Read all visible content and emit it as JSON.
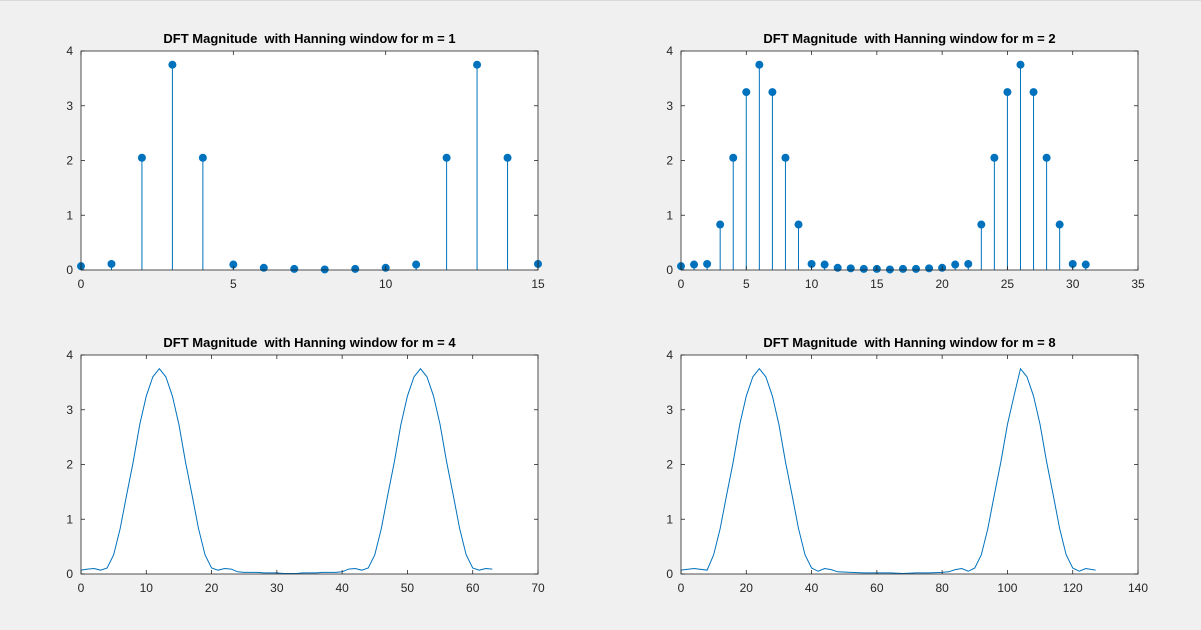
{
  "figure": {
    "background": "#f0f0f0",
    "axes_background": "#ffffff",
    "series_color": "#0072bd",
    "axis_color": "#262626"
  },
  "chart_data": [
    {
      "type": "stem",
      "title": "DFT Magnitude  with Hanning window for m = 1",
      "xlim": [
        0,
        15
      ],
      "ylim": [
        0,
        4
      ],
      "xticks": [
        0,
        5,
        10,
        15
      ],
      "yticks": [
        0,
        1,
        2,
        3,
        4
      ],
      "grid": false,
      "marker": "filled-circle",
      "x": [
        0,
        1,
        2,
        3,
        4,
        5,
        6,
        7,
        8,
        9,
        10,
        11,
        12,
        13,
        14,
        15
      ],
      "y": [
        0.07,
        0.11,
        2.05,
        3.75,
        2.05,
        0.1,
        0.04,
        0.02,
        0.01,
        0.02,
        0.04,
        0.1,
        2.05,
        3.75,
        2.05,
        0.11
      ]
    },
    {
      "type": "stem",
      "title": "DFT Magnitude  with Hanning window for m = 2",
      "xlim": [
        0,
        35
      ],
      "ylim": [
        0,
        4
      ],
      "xticks": [
        0,
        5,
        10,
        15,
        20,
        25,
        30,
        35
      ],
      "yticks": [
        0,
        1,
        2,
        3,
        4
      ],
      "grid": false,
      "marker": "filled-circle",
      "x": [
        0,
        1,
        2,
        3,
        4,
        5,
        6,
        7,
        8,
        9,
        10,
        11,
        12,
        13,
        14,
        15,
        16,
        17,
        18,
        19,
        20,
        21,
        22,
        23,
        24,
        25,
        26,
        27,
        28,
        29,
        30,
        31
      ],
      "y": [
        0.07,
        0.1,
        0.11,
        0.83,
        2.05,
        3.25,
        3.75,
        3.25,
        2.05,
        0.83,
        0.11,
        0.1,
        0.04,
        0.03,
        0.02,
        0.02,
        0.01,
        0.02,
        0.02,
        0.03,
        0.04,
        0.1,
        0.11,
        0.83,
        2.05,
        3.25,
        3.75,
        3.25,
        2.05,
        0.83,
        0.11,
        0.1
      ]
    },
    {
      "type": "line",
      "title": "DFT Magnitude  with Hanning window for m = 4",
      "xlim": [
        0,
        70
      ],
      "ylim": [
        0,
        4
      ],
      "xticks": [
        0,
        10,
        20,
        30,
        40,
        50,
        60,
        70
      ],
      "yticks": [
        0,
        1,
        2,
        3,
        4
      ],
      "grid": false,
      "x": [
        0,
        1,
        2,
        3,
        4,
        5,
        6,
        7,
        8,
        9,
        10,
        11,
        12,
        13,
        14,
        15,
        16,
        17,
        18,
        19,
        20,
        21,
        22,
        23,
        24,
        25,
        26,
        27,
        28,
        29,
        30,
        31,
        32,
        33,
        34,
        35,
        36,
        37,
        38,
        39,
        40,
        41,
        42,
        43,
        44,
        45,
        46,
        47,
        48,
        49,
        50,
        51,
        52,
        53,
        54,
        55,
        56,
        57,
        58,
        59,
        60,
        61,
        62,
        63
      ],
      "y": [
        0.07,
        0.09,
        0.1,
        0.07,
        0.11,
        0.35,
        0.83,
        1.45,
        2.05,
        2.73,
        3.25,
        3.6,
        3.75,
        3.6,
        3.25,
        2.73,
        2.05,
        1.45,
        0.83,
        0.35,
        0.11,
        0.07,
        0.1,
        0.09,
        0.04,
        0.03,
        0.03,
        0.03,
        0.02,
        0.02,
        0.02,
        0.01,
        0.01,
        0.01,
        0.02,
        0.02,
        0.02,
        0.03,
        0.03,
        0.03,
        0.04,
        0.09,
        0.1,
        0.07,
        0.11,
        0.35,
        0.83,
        1.45,
        2.05,
        2.73,
        3.25,
        3.6,
        3.75,
        3.6,
        3.25,
        2.73,
        2.05,
        1.45,
        0.83,
        0.35,
        0.11,
        0.07,
        0.1,
        0.09
      ]
    },
    {
      "type": "line",
      "title": "DFT Magnitude  with Hanning window for m = 8",
      "xlim": [
        0,
        140
      ],
      "ylim": [
        0,
        4
      ],
      "xticks": [
        0,
        20,
        40,
        60,
        80,
        100,
        120,
        140
      ],
      "yticks": [
        0,
        1,
        2,
        3,
        4
      ],
      "grid": false,
      "x": [
        0,
        4,
        8,
        10,
        12,
        14,
        16,
        18,
        20,
        22,
        24,
        26,
        28,
        30,
        32,
        34,
        36,
        38,
        40,
        42,
        44,
        46,
        48,
        52,
        56,
        60,
        64,
        68,
        72,
        76,
        80,
        82,
        84,
        86,
        88,
        90,
        92,
        94,
        96,
        98,
        100,
        102,
        104,
        106,
        108,
        110,
        112,
        114,
        116,
        118,
        120,
        122,
        124,
        127
      ],
      "y": [
        0.07,
        0.1,
        0.07,
        0.35,
        0.83,
        1.45,
        2.05,
        2.73,
        3.25,
        3.6,
        3.75,
        3.6,
        3.25,
        2.73,
        2.05,
        1.45,
        0.83,
        0.35,
        0.11,
        0.05,
        0.1,
        0.08,
        0.04,
        0.03,
        0.02,
        0.02,
        0.02,
        0.01,
        0.02,
        0.02,
        0.03,
        0.04,
        0.08,
        0.1,
        0.05,
        0.11,
        0.35,
        0.83,
        1.45,
        2.05,
        2.73,
        3.25,
        3.75,
        3.6,
        3.25,
        2.73,
        2.05,
        1.45,
        0.83,
        0.35,
        0.11,
        0.05,
        0.1,
        0.07
      ]
    }
  ]
}
